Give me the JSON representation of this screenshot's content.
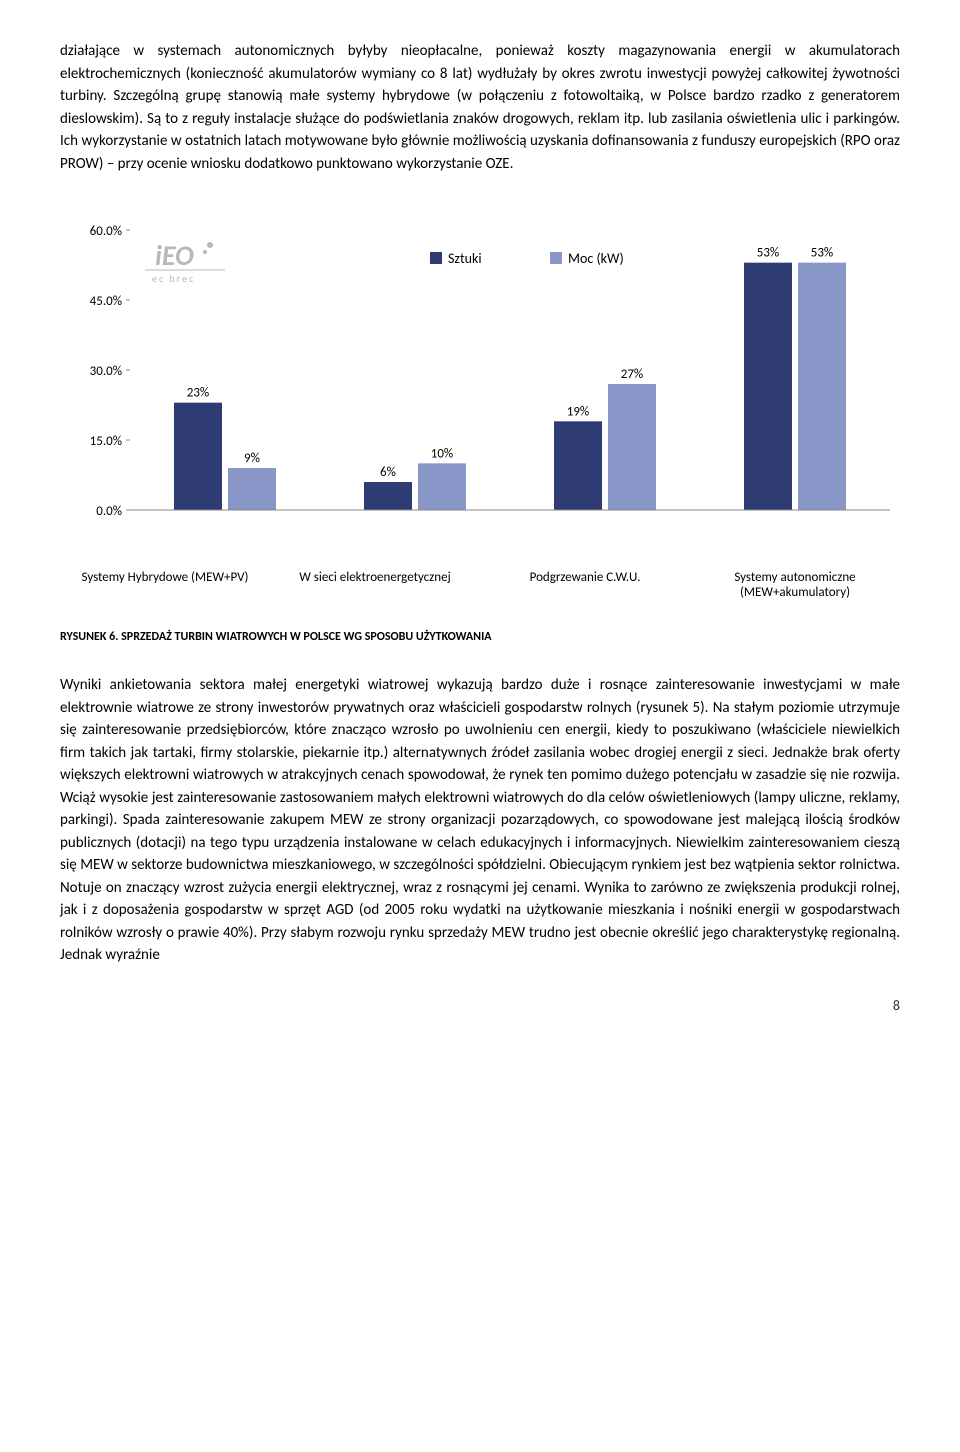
{
  "paragraph1": "działające w systemach autonomicznych byłyby nieopłacalne, ponieważ koszty magazynowania energii w akumulatorach elektrochemicznych (konieczność akumulatorów wymiany co 8 lat) wydłużały by okres zwrotu inwestycji powyżej całkowitej żywotności turbiny. Szczególną grupę stanowią małe systemy hybrydowe (w połączeniu z fotowoltaiką, w Polsce bardzo rzadko z generatorem dieslowskim). Są to z reguły instalacje służące do podświetlania znaków drogowych, reklam itp. lub zasilania oświetlenia ulic i parkingów. Ich wykorzystanie w ostatnich latach motywowane było głównie możliwością uzyskania dofinansowania z funduszy europejskich (RPO oraz PROW) – przy ocenie wniosku dodatkowo punktowano wykorzystanie OZE.",
  "chart": {
    "type": "bar",
    "logo_text_top": "iEO",
    "logo_text_bottom": "ec brec",
    "legend": {
      "series1": "Sztuki",
      "series2": "Moc (kW)"
    },
    "y_ticks": [
      "0.0%",
      "15.0%",
      "30.0%",
      "45.0%",
      "60.0%"
    ],
    "y_max": 60,
    "categories": [
      "Systemy Hybrydowe (MEW+PV)",
      "W sieci elektroenergetycznej",
      "Podgrzewanie C.W.U.",
      "Systemy autonomiczne (MEW+akumulatory)"
    ],
    "series1_values": [
      23,
      6,
      19,
      53
    ],
    "series2_values": [
      9,
      10,
      27,
      53
    ],
    "series1_labels": [
      "23%",
      "6%",
      "19%",
      "53%"
    ],
    "series2_labels": [
      "9%",
      "10%",
      "27%",
      "53%"
    ],
    "colors": {
      "series1": "#2f3b73",
      "series2": "#8896c8",
      "legend_box1": "#2f3b73",
      "legend_box2": "#8896c8",
      "axis": "#888888",
      "text": "#000000",
      "logo": "#b8b8b8"
    },
    "label_fontsize": 13,
    "axis_fontsize": 13
  },
  "figure_caption": "RYSUNEK 6. SPRZEDAŻ TURBIN WIATROWYCH W POLSCE WG SPOSOBU UŻYTKOWANIA",
  "paragraph2": "Wyniki ankietowania sektora małej energetyki wiatrowej wykazują bardzo duże i rosnące zainteresowanie inwestycjami w małe elektrownie wiatrowe ze strony inwestorów prywatnych oraz właścicieli gospodarstw rolnych (rysunek 5). Na stałym poziomie utrzymuje się zainteresowanie przedsiębiorców, które znacząco wzrosło po uwolnieniu cen energii, kiedy to poszukiwano (właściciele niewielkich firm takich jak tartaki, firmy stolarskie, piekarnie itp.) alternatywnych źródeł zasilania wobec drogiej energii z sieci. Jednakże brak oferty większych elektrowni wiatrowych w atrakcyjnych cenach spowodował, że rynek ten pomimo dużego potencjału w zasadzie się nie rozwija. Wciąż wysokie jest zainteresowanie zastosowaniem małych elektrowni wiatrowych do dla celów oświetleniowych (lampy uliczne, reklamy, parkingi). Spada zainteresowanie zakupem MEW ze strony organizacji pozarządowych, co spowodowane jest malejącą ilością środków publicznych (dotacji) na tego typu urządzenia instalowane w celach edukacyjnych i informacyjnych. Niewielkim zainteresowaniem cieszą się MEW w sektorze budownictwa mieszkaniowego, w szczególności spółdzielni. Obiecującym rynkiem jest bez wątpienia sektor rolnictwa. Notuje on znaczący wzrost zużycia energii elektrycznej, wraz z rosnącymi jej cenami. Wynika to zarówno ze zwiększenia produkcji rolnej, jak i z doposażenia gospodarstw w sprzęt AGD (od 2005 roku wydatki na użytkowanie mieszkania i nośniki energii w gospodarstwach rolników wzrosły o prawie 40%). Przy słabym rozwoju rynku sprzedaży MEW trudno jest obecnie określić jego charakterystykę regionalną. Jednak wyraźnie",
  "page_number": "8"
}
